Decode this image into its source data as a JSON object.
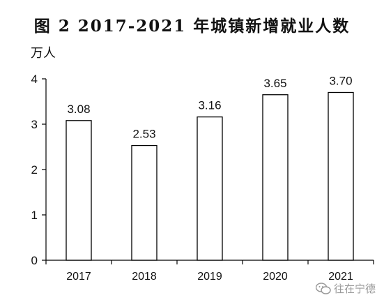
{
  "title": "图 2   2017-2021 年城镇新增就业人数",
  "watermark": {
    "text": "往在宁德",
    "icon": "wechat-icon",
    "color": "#9a9a9a"
  },
  "chart_data": {
    "type": "bar",
    "title": "图 2   2017-2021 年城镇新增就业人数",
    "xlabel": "",
    "ylabel": "万人",
    "categories": [
      "2017",
      "2018",
      "2019",
      "2020",
      "2021"
    ],
    "values": [
      3.08,
      2.53,
      3.16,
      3.65,
      3.7
    ],
    "data_labels": [
      "3.08",
      "2.53",
      "3.16",
      "3.65",
      "3.70"
    ],
    "ylim": [
      0,
      4
    ],
    "yticks": [
      "0",
      "1",
      "2",
      "3",
      "4"
    ],
    "grid": false,
    "legend": "none",
    "bar_fill": "#ffffff",
    "bar_stroke": "#000000"
  }
}
